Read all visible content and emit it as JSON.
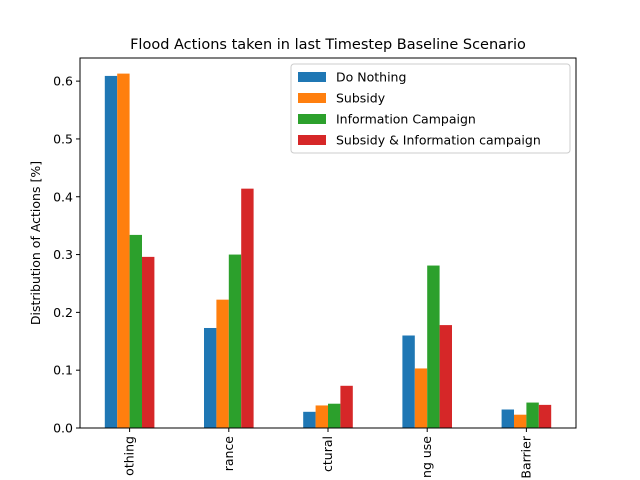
{
  "chart_data": {
    "type": "bar",
    "title": "Flood Actions taken in last Timestep Baseline Scenario",
    "xlabel": "",
    "ylabel": "Distribution of Actions [%]",
    "ylim": [
      0.0,
      0.64
    ],
    "yticks": [
      "0.0",
      "0.1",
      "0.2",
      "0.3",
      "0.4",
      "0.5",
      "0.6"
    ],
    "categories": [
      "othing",
      "rance",
      "ctural",
      "ng use",
      "Barrier"
    ],
    "legend_position": "top-right",
    "grid": false,
    "series": [
      {
        "name": "Do Nothing",
        "color": "#1f77b4",
        "values": [
          0.609,
          0.173,
          0.028,
          0.16,
          0.032
        ]
      },
      {
        "name": "Subsidy",
        "color": "#ff7f0e",
        "values": [
          0.613,
          0.222,
          0.039,
          0.103,
          0.023
        ]
      },
      {
        "name": "Information Campaign",
        "color": "#2ca02c",
        "values": [
          0.334,
          0.3,
          0.042,
          0.281,
          0.044
        ]
      },
      {
        "name": "Subsidy & Information campaign",
        "color": "#d62728",
        "values": [
          0.296,
          0.414,
          0.073,
          0.178,
          0.04
        ]
      }
    ]
  }
}
